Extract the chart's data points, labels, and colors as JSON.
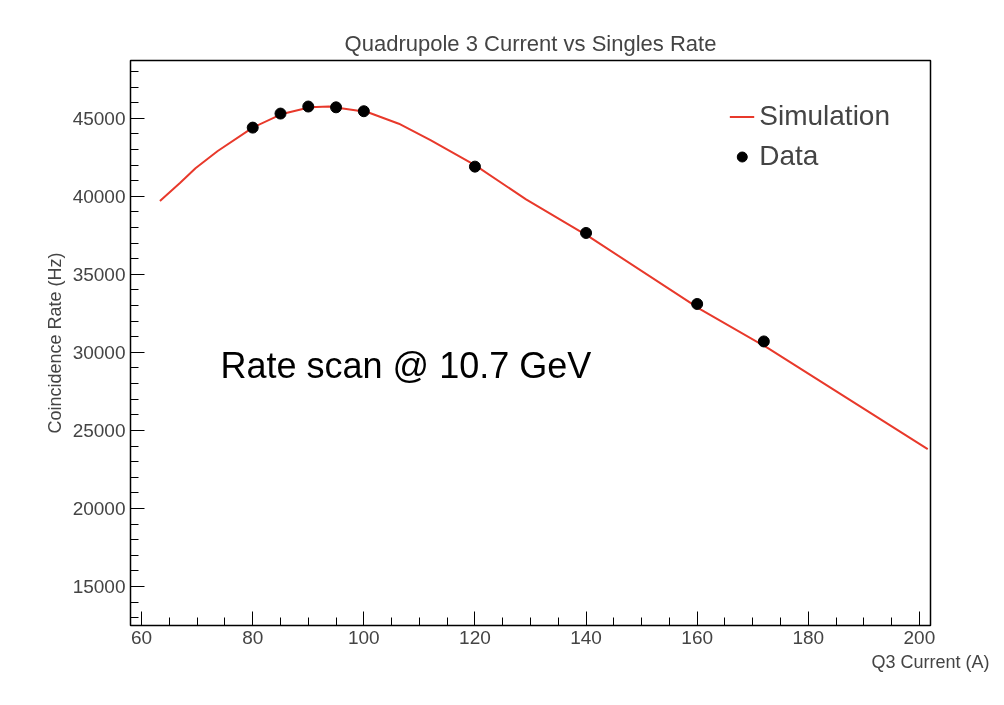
{
  "chart_data": {
    "type": "line",
    "title": "Quadrupole 3 Current vs Singles Rate",
    "xlabel": "Q3 Current (A)",
    "ylabel": "Coincidence Rate (Hz)",
    "series": [
      {
        "name": "Simulation",
        "color": "#e8392b",
        "x": [
          63.3,
          66.9,
          69.7,
          73.7,
          80,
          85.1,
          90.3,
          93.7,
          100.6,
          106.3,
          112,
          120,
          129.2,
          140.6,
          160.6,
          172.6,
          201.5
        ],
        "values": [
          39700,
          40850,
          41800,
          42900,
          44400,
          45250,
          45700,
          45750,
          45400,
          44650,
          43600,
          42000,
          39800,
          37400,
          32750,
          30300,
          23800
        ]
      },
      {
        "name": "Data",
        "type": "scatter",
        "color": "#000000",
        "marker": "circle",
        "x": [
          80,
          85,
          90,
          95,
          100,
          120,
          140,
          160,
          172
        ],
        "values": [
          44400,
          45300,
          45750,
          45700,
          45450,
          41900,
          37650,
          33100,
          30700
        ]
      }
    ],
    "xlim": [
      58,
      202
    ],
    "ylim": [
      12500,
      48700
    ],
    "xticks": [
      60,
      80,
      100,
      120,
      140,
      160,
      180,
      200
    ],
    "yticks": [
      15000,
      20000,
      25000,
      30000,
      35000,
      40000,
      45000
    ],
    "grid": false,
    "legend": "top right",
    "annotations": [
      "Rate scan @ 10.7 GeV"
    ]
  }
}
